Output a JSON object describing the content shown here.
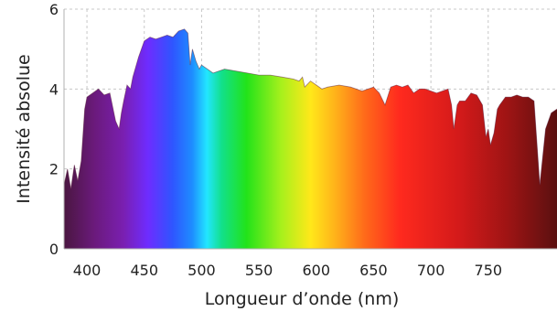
{
  "chart_data": {
    "type": "area",
    "title": "",
    "xlabel": "Longueur d’onde (nm)",
    "ylabel": "Intensité absolue",
    "xlim": [
      380,
      810
    ],
    "ylim": [
      0,
      6
    ],
    "grid": true,
    "x_ticks": [
      400,
      450,
      500,
      550,
      600,
      650,
      700,
      750
    ],
    "y_ticks": [
      0,
      2,
      4,
      6
    ],
    "fill": "visible-spectrum-gradient",
    "series": [
      {
        "x": [
          380,
          383,
          386,
          389,
          392,
          395,
          398,
          400,
          405,
          410,
          415,
          420,
          425,
          428,
          430,
          432,
          435,
          438,
          440,
          445,
          450,
          455,
          460,
          465,
          470,
          475,
          480,
          485,
          488,
          490,
          492,
          495,
          498,
          500,
          505,
          510,
          520,
          530,
          540,
          550,
          560,
          570,
          580,
          585,
          588,
          590,
          595,
          600,
          605,
          610,
          620,
          630,
          640,
          650,
          655,
          660,
          665,
          670,
          675,
          680,
          685,
          690,
          695,
          700,
          705,
          710,
          715,
          718,
          720,
          723,
          725,
          730,
          735,
          740,
          745,
          748,
          750,
          752,
          755,
          758,
          760,
          765,
          770,
          775,
          780,
          785,
          790,
          795,
          800,
          805,
          810
        ],
        "values": [
          1.6,
          2.0,
          1.5,
          2.1,
          1.7,
          2.2,
          3.5,
          3.8,
          3.9,
          4.0,
          3.85,
          3.9,
          3.2,
          3.0,
          3.4,
          3.7,
          4.1,
          4.0,
          4.3,
          4.8,
          5.2,
          5.3,
          5.25,
          5.3,
          5.35,
          5.3,
          5.45,
          5.5,
          5.4,
          4.6,
          5.0,
          4.7,
          4.5,
          4.6,
          4.5,
          4.4,
          4.5,
          4.45,
          4.4,
          4.35,
          4.35,
          4.3,
          4.25,
          4.2,
          4.3,
          4.05,
          4.2,
          4.1,
          4.0,
          4.05,
          4.1,
          4.05,
          3.95,
          4.05,
          3.9,
          3.6,
          4.05,
          4.1,
          4.05,
          4.1,
          3.9,
          4.0,
          4.0,
          3.95,
          3.9,
          3.95,
          4.0,
          3.6,
          3.0,
          3.6,
          3.7,
          3.7,
          3.9,
          3.85,
          3.6,
          2.8,
          3.0,
          2.6,
          2.9,
          3.5,
          3.6,
          3.8,
          3.8,
          3.85,
          3.8,
          3.8,
          3.7,
          1.6,
          3.0,
          3.4,
          3.5
        ]
      }
    ]
  }
}
